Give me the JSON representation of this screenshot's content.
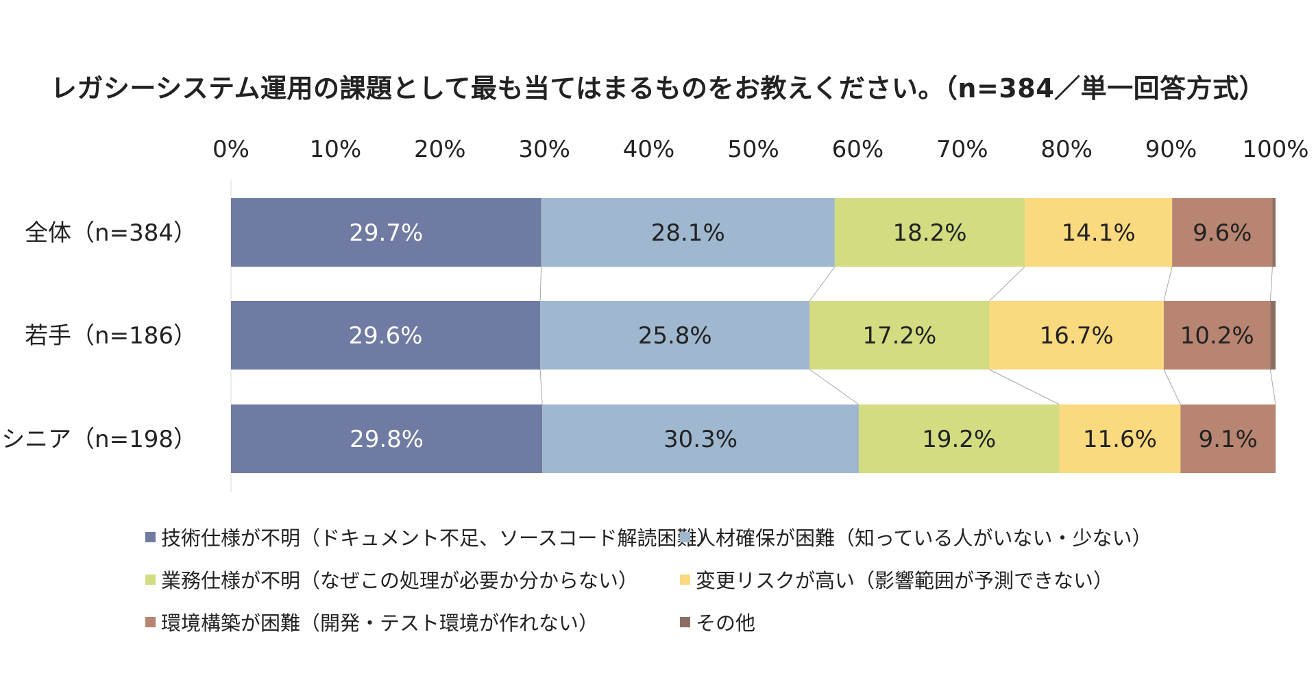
{
  "chart_data": {
    "type": "bar",
    "orientation": "horizontal",
    "stacked": "percent",
    "title": "レガシーシステム運用の課題として最も当てはまるものをお教えください。（n=384／単一回答方式）",
    "xlim": [
      0,
      100
    ],
    "xticks": [
      "0%",
      "10%",
      "20%",
      "30%",
      "40%",
      "50%",
      "60%",
      "70%",
      "80%",
      "90%",
      "100%"
    ],
    "categories": [
      "全体（n=384）",
      "若手（n=186）",
      "シニア（n=198）"
    ],
    "series": [
      {
        "name": "技術仕様が不明（ドキュメント不足、ソースコード解読困難）",
        "color": "#6f7ba2",
        "values": [
          29.7,
          29.6,
          29.8
        ],
        "labels": [
          "29.7%",
          "29.6%",
          "29.8%"
        ],
        "label_color": "#ffffff"
      },
      {
        "name": "人材確保が困難（知っている人がいない・少ない）",
        "color": "#9fb7cf",
        "values": [
          28.1,
          25.8,
          30.3
        ],
        "labels": [
          "28.1%",
          "25.8%",
          "30.3%"
        ],
        "label_color": "#222222"
      },
      {
        "name": "業務仕様が不明（なぜこの処理が必要か分からない）",
        "color": "#d3dc81",
        "values": [
          18.2,
          17.2,
          19.2
        ],
        "labels": [
          "18.2%",
          "17.2%",
          "19.2%"
        ],
        "label_color": "#222222"
      },
      {
        "name": "変更リスクが高い（影響範囲が予測できない）",
        "color": "#fad97f",
        "values": [
          14.1,
          16.7,
          11.6
        ],
        "labels": [
          "14.1%",
          "16.7%",
          "11.6%"
        ],
        "label_color": "#222222"
      },
      {
        "name": "環境構築が困難（開発・テスト環境が作れない）",
        "color": "#b78571",
        "values": [
          9.6,
          10.2,
          9.1
        ],
        "labels": [
          "9.6%",
          "10.2%",
          "9.1%"
        ],
        "label_color": "#222222"
      },
      {
        "name": "その他",
        "color": "#8c6e62",
        "values": [
          0.3,
          0.5,
          0.0
        ],
        "labels": [
          "",
          "",
          ""
        ],
        "label_color": "#222222"
      }
    ],
    "legend_position": "bottom",
    "grid": false,
    "series_lines": true
  }
}
